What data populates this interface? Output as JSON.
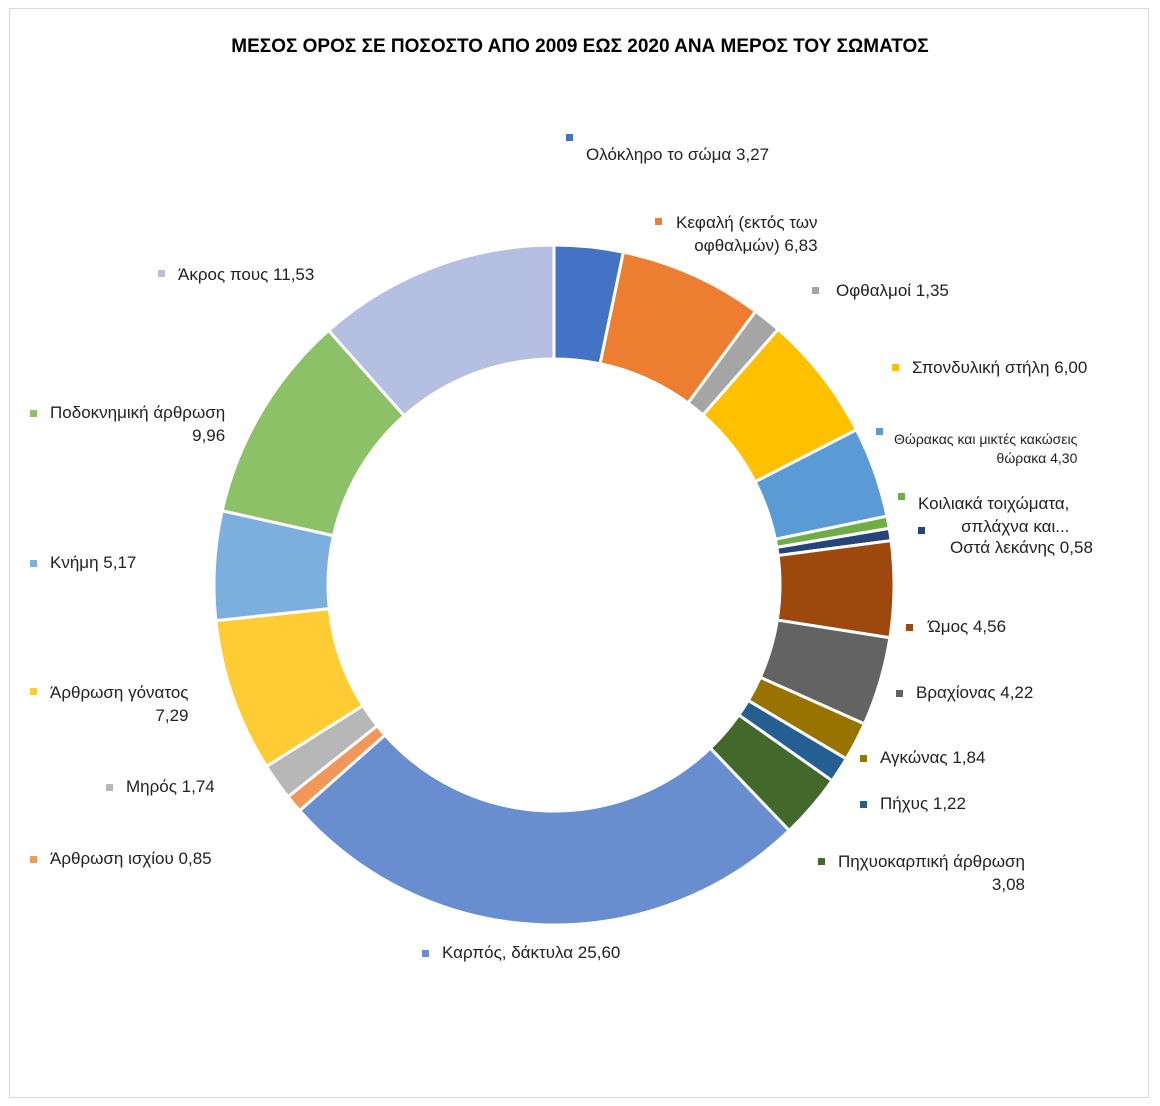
{
  "chart_data": {
    "type": "pie",
    "style": "doughnut",
    "title": "ΜΕΣΟΣ ΟΡΟΣ ΣΕ ΠΟΣΟΣΤΟ ΑΠΟ 2009 ΕΩΣ 2020 ΑΝΑ ΜΕΡΟΣ ΤΟΥ ΣΩΜΑΤΟΣ",
    "slices": [
      {
        "name": "Ολόκληρο το σώμα",
        "value": 3.27,
        "label": "Ολόκληρο το σώμα 3,27",
        "color": "#4472c4"
      },
      {
        "name": "Κεφαλή (εκτός των οφθαλμών)",
        "value": 6.83,
        "label": "Κεφαλή (εκτός των\nοφθαλμών) 6,83",
        "color": "#ed7d31"
      },
      {
        "name": "Οφθαλμοί",
        "value": 1.35,
        "label": "Οφθαλμοί 1,35",
        "color": "#a5a5a5"
      },
      {
        "name": "Σπονδυλική στήλη",
        "value": 6.0,
        "label": "Σπονδυλική στήλη 6,00",
        "color": "#ffc000"
      },
      {
        "name": "Θώρακας και μικτές κακώσεις θώρακα",
        "value": 4.3,
        "label": "Θώρακας και μικτές κακώσεις\nθώρακα 4,30",
        "color": "#5b9bd5"
      },
      {
        "name": "Κοιλιακά τοιχώματα, σπλάχνα και...",
        "value": 0.58,
        "label": "Κοιλιακά τοιχώματα,\nσπλάχνα και...",
        "color": "#70ad47"
      },
      {
        "name": "Οστά λεκάνης",
        "value": 0.58,
        "label": "Οστά λεκάνης 0,58",
        "color": "#264478"
      },
      {
        "name": "Ώμος",
        "value": 4.56,
        "label": "Ώμος 4,56",
        "color": "#9e480e"
      },
      {
        "name": "Βραχίονας",
        "value": 4.22,
        "label": "Βραχίονας 4,22",
        "color": "#636363"
      },
      {
        "name": "Αγκώνας",
        "value": 1.84,
        "label": "Αγκώνας 1,84",
        "color": "#997300"
      },
      {
        "name": "Πήχυς",
        "value": 1.22,
        "label": "Πήχυς 1,22",
        "color": "#255e91"
      },
      {
        "name": "Πηχυοκαρπική άρθρωση",
        "value": 3.08,
        "label": "Πηχυοκαρπική άρθρωση\n3,08",
        "color": "#43682b"
      },
      {
        "name": "Καρπός, δάκτυλα",
        "value": 25.6,
        "label": "Καρπός, δάκτυλα 25,60",
        "color": "#698ed0"
      },
      {
        "name": "Άρθρωση ισχίου",
        "value": 0.85,
        "label": "Άρθρωση ισχίου 0,85",
        "color": "#f1975a"
      },
      {
        "name": "Μηρός",
        "value": 1.74,
        "label": "Μηρός 1,74",
        "color": "#b7b7b7"
      },
      {
        "name": "Άρθρωση γόνατος",
        "value": 7.29,
        "label": "Άρθρωση γόνατος\n7,29",
        "color": "#ffcd33"
      },
      {
        "name": "Κνήμη",
        "value": 5.17,
        "label": "Κνήμη 5,17",
        "color": "#7cafdd"
      },
      {
        "name": "Ποδοκνημική άρθρωση",
        "value": 9.96,
        "label": "Ποδοκνημική άρθρωση\n9,96",
        "color": "#8cc168"
      },
      {
        "name": "Άκρος πους",
        "value": 11.53,
        "label": "Άκρος πους 11,53",
        "color": "#b4bfe1"
      }
    ]
  }
}
